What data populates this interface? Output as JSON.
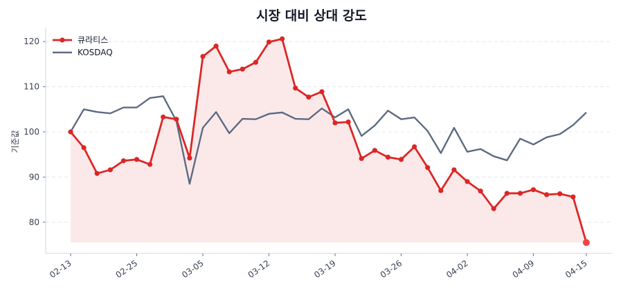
{
  "chart_data": {
    "type": "line",
    "title": "시장 대비 상대 강도",
    "xlabel": "",
    "ylabel": "기준값",
    "ylim": [
      73.5,
      123
    ],
    "yticks": [
      80,
      90,
      100,
      110,
      120
    ],
    "grid": true,
    "legend_position": "upper left",
    "x_tick_labels": [
      "02-13",
      "02-25",
      "03-05",
      "03-12",
      "03-19",
      "03-26",
      "04-02",
      "04-09",
      "04-15"
    ],
    "x_tick_indices": [
      0,
      5,
      10,
      15,
      20,
      25,
      30,
      35,
      39
    ],
    "n_points": 40,
    "series": [
      {
        "name": "큐라티스",
        "color": "#dc2626",
        "markers": true,
        "fill_area": true,
        "fill_color": "#fbe9e9",
        "values": [
          100.0,
          96.5,
          90.8,
          91.6,
          93.6,
          93.9,
          92.8,
          103.3,
          102.8,
          94.2,
          116.7,
          119.0,
          113.3,
          113.9,
          115.4,
          119.9,
          120.6,
          109.7,
          107.7,
          108.9,
          102.0,
          102.2,
          94.1,
          95.9,
          94.4,
          93.9,
          96.7,
          92.1,
          87.0,
          91.6,
          89.0,
          86.9,
          83.0,
          86.4,
          86.4,
          87.2,
          86.1,
          86.3,
          85.6,
          75.5
        ]
      },
      {
        "name": "KOSDAQ",
        "color": "#5b6b82",
        "markers": false,
        "values": [
          100.0,
          105.0,
          104.4,
          104.1,
          105.4,
          105.4,
          107.5,
          107.9,
          102.4,
          88.5,
          100.9,
          104.4,
          99.7,
          102.9,
          102.8,
          104.0,
          104.3,
          102.9,
          102.8,
          105.2,
          103.2,
          105.0,
          99.1,
          101.4,
          104.7,
          102.8,
          103.2,
          100.2,
          95.3,
          100.9,
          95.6,
          96.2,
          94.6,
          93.7,
          98.5,
          97.2,
          98.8,
          99.5,
          101.5,
          104.3
        ]
      }
    ]
  },
  "colors": {
    "axis": "#d1d5db",
    "grid": "#e5e7eb",
    "text": "#374151"
  }
}
